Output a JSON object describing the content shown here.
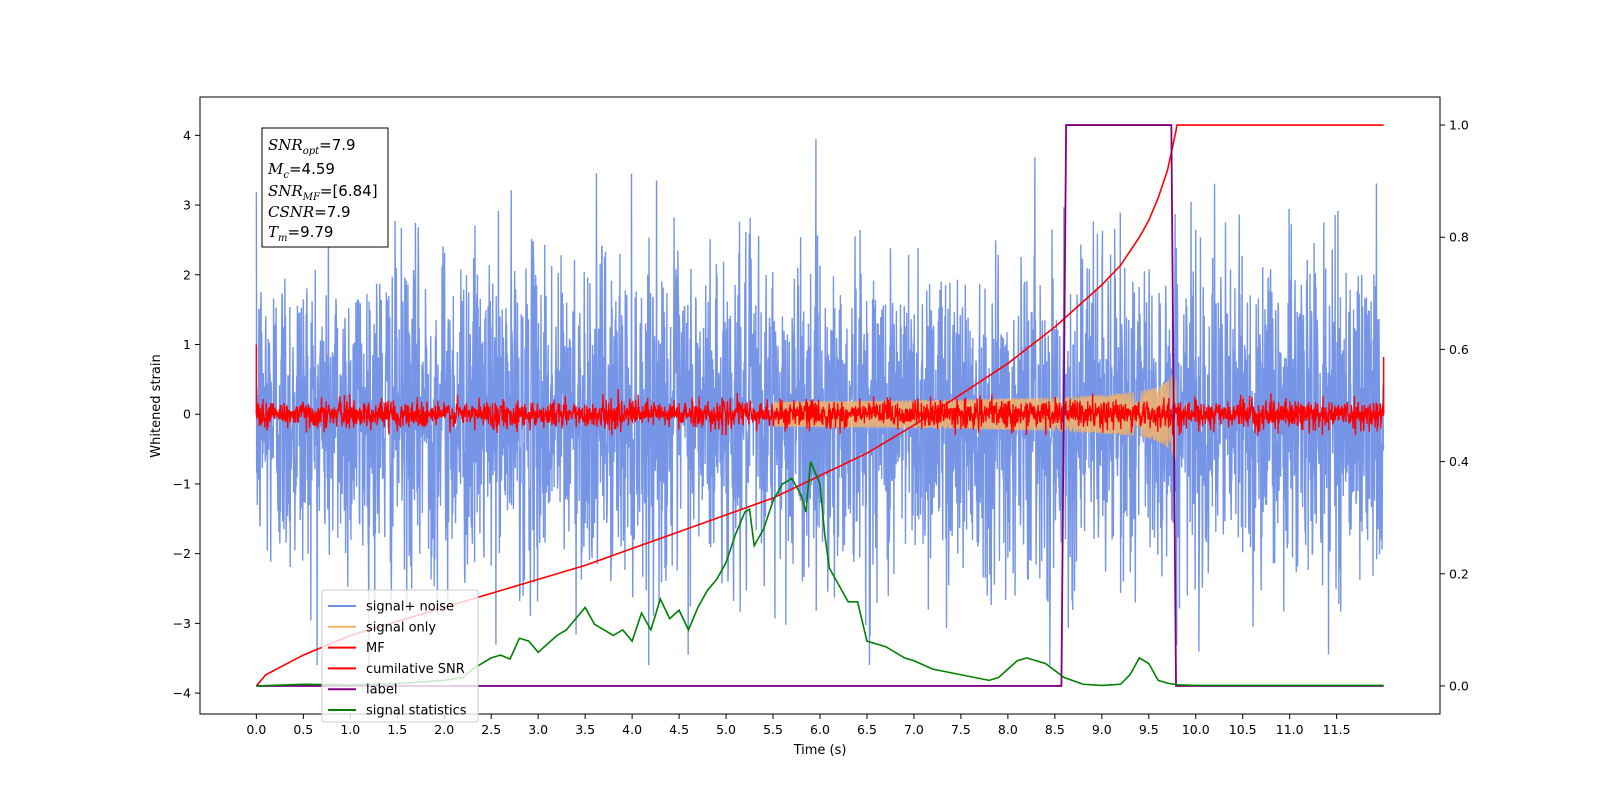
{
  "chart_data": {
    "type": "line",
    "xlabel": "Time (s)",
    "ylabel": "Whitened strain",
    "xlim": [
      -0.6,
      12.6
    ],
    "ylim": [
      -4.3,
      4.55
    ],
    "ylim_right": [
      -0.05,
      1.05
    ],
    "x_ticks": [
      "0.0",
      "0.5",
      "1.0",
      "1.5",
      "2.0",
      "2.5",
      "3.0",
      "3.5",
      "4.0",
      "4.5",
      "5.0",
      "5.5",
      "6.0",
      "6.5",
      "7.0",
      "7.5",
      "8.0",
      "8.5",
      "9.0",
      "9.5",
      "10.0",
      "10.5",
      "11.0",
      "11.5"
    ],
    "y_ticks_left": [
      "4",
      "3",
      "2",
      "1",
      "0",
      "−1",
      "−2",
      "−3",
      "−4"
    ],
    "y_ticks_right": [
      "1.0",
      "0.8",
      "0.6",
      "0.4",
      "0.2",
      "0.0"
    ],
    "grid": false,
    "legend_position": "lower-left",
    "annotation": {
      "snr_opt": {
        "sym": "SNR",
        "sub": "opt",
        "val": "=7.9"
      },
      "mc": {
        "sym": "M",
        "sub": "c",
        "val": "=4.59"
      },
      "snr_mf": {
        "sym": "SNR",
        "sub": "MF",
        "val": "=[6.84]"
      },
      "csnr": {
        "sym": "CSNR",
        "sub": "",
        "val": "=7.9"
      },
      "tm": {
        "sym": "T",
        "sub": "m",
        "val": "=9.79"
      }
    },
    "series": [
      {
        "name": "signal+ noise",
        "axis": "left",
        "color": "#6f8fe6",
        "kind": "noise",
        "x_range": [
          0.0,
          12.0
        ],
        "amplitude_range": [
          -3.6,
          4.15
        ]
      },
      {
        "name": "signal only",
        "axis": "left",
        "color": "#f5b36a",
        "kind": "chirp",
        "x_range": [
          5.5,
          9.8
        ],
        "peak_amplitude": 0.7,
        "peak_time": 9.79
      },
      {
        "name": "MF",
        "axis": "left",
        "color": "#ff0000",
        "kind": "noise",
        "x_range": [
          0.0,
          12.0
        ],
        "amplitude_range": [
          -0.3,
          0.45
        ]
      },
      {
        "name": "cumilative SNR",
        "axis": "right",
        "color": "#ff0000",
        "kind": "line",
        "x": [
          0.0,
          0.1,
          0.5,
          1.0,
          1.5,
          2.0,
          2.5,
          3.0,
          3.5,
          4.0,
          4.5,
          5.0,
          5.5,
          6.0,
          6.5,
          7.0,
          7.5,
          8.0,
          8.5,
          9.0,
          9.2,
          9.4,
          9.5,
          9.6,
          9.7,
          9.79,
          9.8,
          12.0
        ],
        "y": [
          0.0,
          0.02,
          0.055,
          0.09,
          0.115,
          0.14,
          0.165,
          0.19,
          0.215,
          0.245,
          0.275,
          0.305,
          0.335,
          0.375,
          0.415,
          0.465,
          0.52,
          0.575,
          0.64,
          0.715,
          0.75,
          0.8,
          0.83,
          0.87,
          0.92,
          0.99,
          1.0,
          1.0
        ]
      },
      {
        "name": "label",
        "axis": "right",
        "color": "#800080",
        "kind": "line",
        "x": [
          0.0,
          8.57,
          8.62,
          9.74,
          9.79,
          12.0
        ],
        "y": [
          0.0,
          0.0,
          1.0,
          1.0,
          0.0,
          0.0
        ]
      },
      {
        "name": "signal statistics",
        "axis": "right",
        "color": "#008000",
        "kind": "line",
        "x": [
          0.0,
          0.5,
          1.0,
          1.5,
          2.0,
          2.2,
          2.3,
          2.5,
          2.6,
          2.7,
          2.8,
          2.9,
          3.0,
          3.1,
          3.2,
          3.3,
          3.4,
          3.5,
          3.6,
          3.7,
          3.8,
          3.9,
          4.0,
          4.1,
          4.2,
          4.3,
          4.4,
          4.5,
          4.6,
          4.7,
          4.8,
          4.9,
          5.0,
          5.1,
          5.2,
          5.25,
          5.3,
          5.4,
          5.5,
          5.6,
          5.7,
          5.8,
          5.85,
          5.9,
          5.95,
          6.0,
          6.05,
          6.1,
          6.2,
          6.3,
          6.4,
          6.5,
          6.7,
          6.9,
          7.0,
          7.2,
          7.5,
          7.8,
          7.9,
          8.0,
          8.1,
          8.2,
          8.4,
          8.6,
          8.8,
          9.0,
          9.2,
          9.3,
          9.4,
          9.5,
          9.6,
          9.7,
          9.8,
          10.0,
          11.0,
          11.5,
          12.0
        ],
        "y": [
          0.0,
          0.003,
          0.002,
          0.004,
          0.01,
          0.015,
          0.03,
          0.05,
          0.055,
          0.048,
          0.085,
          0.08,
          0.06,
          0.075,
          0.09,
          0.1,
          0.12,
          0.14,
          0.11,
          0.1,
          0.09,
          0.1,
          0.08,
          0.13,
          0.1,
          0.155,
          0.12,
          0.135,
          0.1,
          0.14,
          0.17,
          0.19,
          0.22,
          0.27,
          0.31,
          0.315,
          0.25,
          0.28,
          0.33,
          0.36,
          0.37,
          0.34,
          0.31,
          0.4,
          0.38,
          0.36,
          0.27,
          0.21,
          0.18,
          0.15,
          0.15,
          0.08,
          0.07,
          0.05,
          0.045,
          0.03,
          0.02,
          0.01,
          0.015,
          0.03,
          0.045,
          0.05,
          0.04,
          0.015,
          0.003,
          0.001,
          0.003,
          0.02,
          0.05,
          0.04,
          0.01,
          0.005,
          0.002,
          0.001,
          0.001,
          0.001,
          0.001
        ]
      }
    ]
  }
}
